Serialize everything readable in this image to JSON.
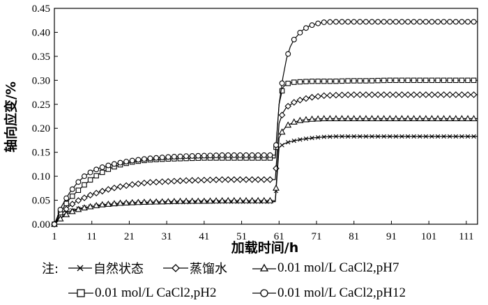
{
  "chart_data": {
    "type": "line",
    "xlabel": "加载时间/h",
    "ylabel": "轴向应变/%",
    "xlim": [
      1,
      114
    ],
    "ylim": [
      0,
      0.45
    ],
    "xticks": [
      "1",
      "11",
      "21",
      "31",
      "41",
      "51",
      "61",
      "71",
      "81",
      "91",
      "101",
      "111"
    ],
    "yticks": [
      "0.00",
      "0.05",
      "0.10",
      "0.15",
      "0.20",
      "0.25",
      "0.30",
      "0.35",
      "0.40",
      "0.45"
    ],
    "legend_note": "注:",
    "legend_position": "bottom",
    "series": [
      {
        "name": "自然状态",
        "marker": "x",
        "x": [
          1,
          3,
          5,
          7,
          9,
          11,
          13,
          16,
          19,
          22,
          26,
          31,
          36,
          41,
          46,
          51,
          56,
          60,
          61,
          62,
          63,
          65,
          67,
          70,
          73,
          76,
          80,
          85,
          90,
          95,
          100,
          105,
          110,
          114
        ],
        "y": [
          0.0,
          0.018,
          0.027,
          0.032,
          0.035,
          0.037,
          0.039,
          0.041,
          0.043,
          0.044,
          0.045,
          0.046,
          0.046,
          0.047,
          0.047,
          0.047,
          0.047,
          0.047,
          0.16,
          0.166,
          0.17,
          0.174,
          0.177,
          0.18,
          0.182,
          0.183,
          0.183,
          0.183,
          0.183,
          0.183,
          0.183,
          0.183,
          0.183,
          0.183
        ]
      },
      {
        "name": "蒸馏水",
        "marker": "diamond",
        "x": [
          1,
          3,
          5,
          7,
          9,
          11,
          13,
          16,
          19,
          22,
          26,
          31,
          36,
          41,
          46,
          51,
          56,
          60,
          61,
          62,
          63,
          65,
          67,
          70,
          73,
          76,
          80,
          85,
          90,
          95,
          100,
          105,
          110,
          114
        ],
        "y": [
          0.0,
          0.022,
          0.038,
          0.048,
          0.055,
          0.062,
          0.067,
          0.074,
          0.079,
          0.083,
          0.087,
          0.089,
          0.091,
          0.092,
          0.093,
          0.093,
          0.093,
          0.093,
          0.21,
          0.232,
          0.244,
          0.254,
          0.26,
          0.265,
          0.268,
          0.269,
          0.27,
          0.27,
          0.27,
          0.27,
          0.27,
          0.27,
          0.27,
          0.27
        ]
      },
      {
        "name": "0.01 mol/L CaCl2,pH7",
        "marker": "triangle",
        "x": [
          1,
          3,
          5,
          7,
          9,
          11,
          13,
          16,
          19,
          22,
          26,
          31,
          36,
          41,
          46,
          51,
          56,
          60,
          61,
          62,
          63,
          65,
          67,
          70,
          73,
          76,
          80,
          85,
          90,
          95,
          100,
          105,
          110,
          114
        ],
        "y": [
          0.0,
          0.014,
          0.024,
          0.03,
          0.034,
          0.037,
          0.04,
          0.042,
          0.044,
          0.045,
          0.046,
          0.047,
          0.048,
          0.048,
          0.049,
          0.049,
          0.049,
          0.049,
          0.18,
          0.195,
          0.205,
          0.213,
          0.217,
          0.219,
          0.22,
          0.22,
          0.22,
          0.22,
          0.22,
          0.22,
          0.22,
          0.22,
          0.22,
          0.22
        ]
      },
      {
        "name": "0.01 mol/L CaCl2,pH2",
        "marker": "square",
        "x": [
          1,
          3,
          5,
          7,
          9,
          11,
          13,
          16,
          19,
          22,
          26,
          31,
          36,
          41,
          46,
          51,
          56,
          60,
          61,
          62,
          63,
          65,
          67,
          70,
          73,
          76,
          80,
          85,
          90,
          95,
          100,
          105,
          110,
          114
        ],
        "y": [
          0.0,
          0.03,
          0.052,
          0.068,
          0.082,
          0.095,
          0.105,
          0.117,
          0.125,
          0.13,
          0.134,
          0.136,
          0.137,
          0.138,
          0.138,
          0.138,
          0.138,
          0.138,
          0.25,
          0.285,
          0.293,
          0.296,
          0.297,
          0.298,
          0.298,
          0.298,
          0.299,
          0.299,
          0.3,
          0.3,
          0.3,
          0.3,
          0.3,
          0.3
        ]
      },
      {
        "name": "0.01 mol/L CaCl2,pH12",
        "marker": "circle",
        "x": [
          1,
          3,
          5,
          7,
          9,
          11,
          13,
          16,
          19,
          22,
          26,
          31,
          36,
          41,
          46,
          51,
          56,
          60,
          61,
          62,
          63,
          64,
          65,
          67,
          69,
          71,
          73,
          76,
          80,
          85,
          90,
          95,
          100,
          105,
          110,
          114
        ],
        "y": [
          0.0,
          0.038,
          0.065,
          0.085,
          0.1,
          0.11,
          0.117,
          0.124,
          0.129,
          0.133,
          0.137,
          0.14,
          0.142,
          0.143,
          0.144,
          0.144,
          0.144,
          0.144,
          0.25,
          0.305,
          0.345,
          0.37,
          0.385,
          0.403,
          0.413,
          0.418,
          0.421,
          0.422,
          0.422,
          0.422,
          0.422,
          0.422,
          0.422,
          0.422,
          0.422,
          0.422
        ]
      }
    ]
  }
}
